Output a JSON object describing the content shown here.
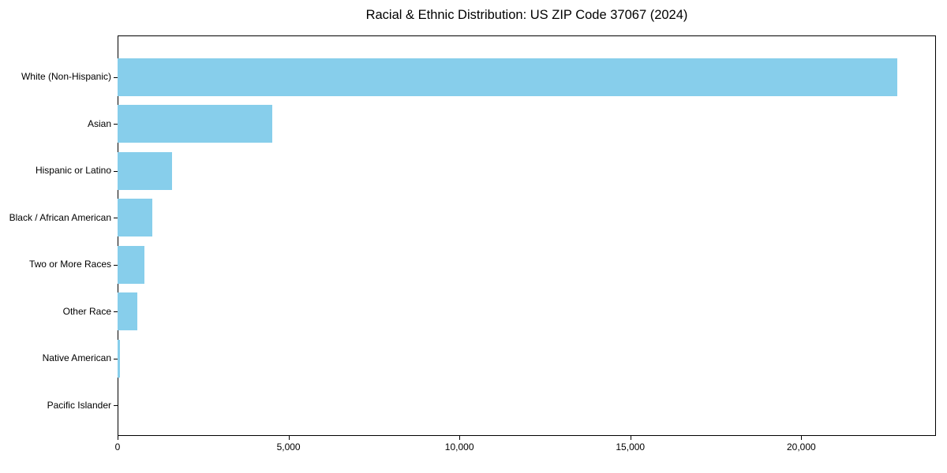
{
  "figure": {
    "kind": "horizontal-bar-chart"
  },
  "chart_data": {
    "type": "bar",
    "orientation": "horizontal",
    "title": "Racial & Ethnic Distribution: US ZIP Code 37067 (2024)",
    "categories": [
      "White (Non-Hispanic)",
      "Asian",
      "Hispanic or Latino",
      "Black / African American",
      "Two or More Races",
      "Other Race",
      "Native American",
      "Pacific Islander"
    ],
    "values": [
      22800,
      4520,
      1590,
      1020,
      790,
      570,
      60,
      0
    ],
    "xlabel": "",
    "ylabel": "",
    "xlim": [
      0,
      23940
    ],
    "x_ticks": [
      0,
      5000,
      10000,
      15000,
      20000
    ],
    "x_tick_labels": [
      "0",
      "5,000",
      "10,000",
      "15,000",
      "20,000"
    ],
    "grid": false,
    "legend_position": "none",
    "bar_color": "#87CEEB",
    "spine_color": "#000000",
    "text_color": "#000000",
    "background": "#FFFFFF"
  }
}
